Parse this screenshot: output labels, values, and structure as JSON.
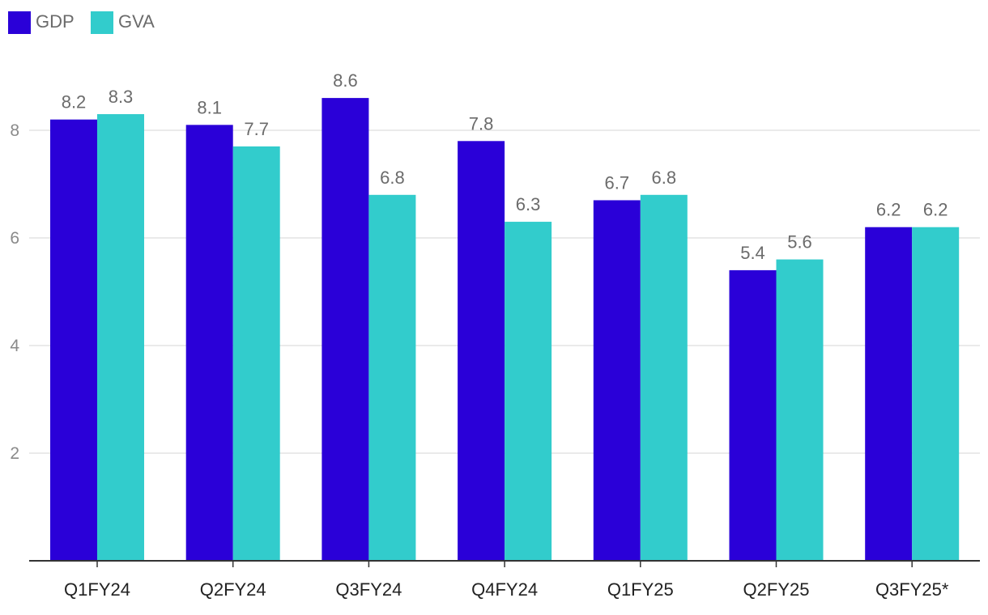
{
  "chart_data": {
    "type": "bar",
    "title": "",
    "xlabel": "",
    "ylabel": "",
    "ylim": [
      0,
      9.5
    ],
    "yticks": [
      2,
      4,
      6,
      8
    ],
    "grid": true,
    "legend_position": "top-left",
    "categories": [
      "Q1FY24",
      "Q2FY24",
      "Q3FY24",
      "Q4FY24",
      "Q1FY25",
      "Q2FY25",
      "Q3FY25*"
    ],
    "series": [
      {
        "name": "GDP",
        "color": "#2a00d8",
        "values": [
          8.2,
          8.1,
          8.6,
          7.8,
          6.7,
          5.4,
          6.2
        ]
      },
      {
        "name": "GVA",
        "color": "#32cccc",
        "values": [
          8.3,
          7.7,
          6.8,
          6.3,
          6.8,
          5.6,
          6.2
        ]
      }
    ]
  }
}
